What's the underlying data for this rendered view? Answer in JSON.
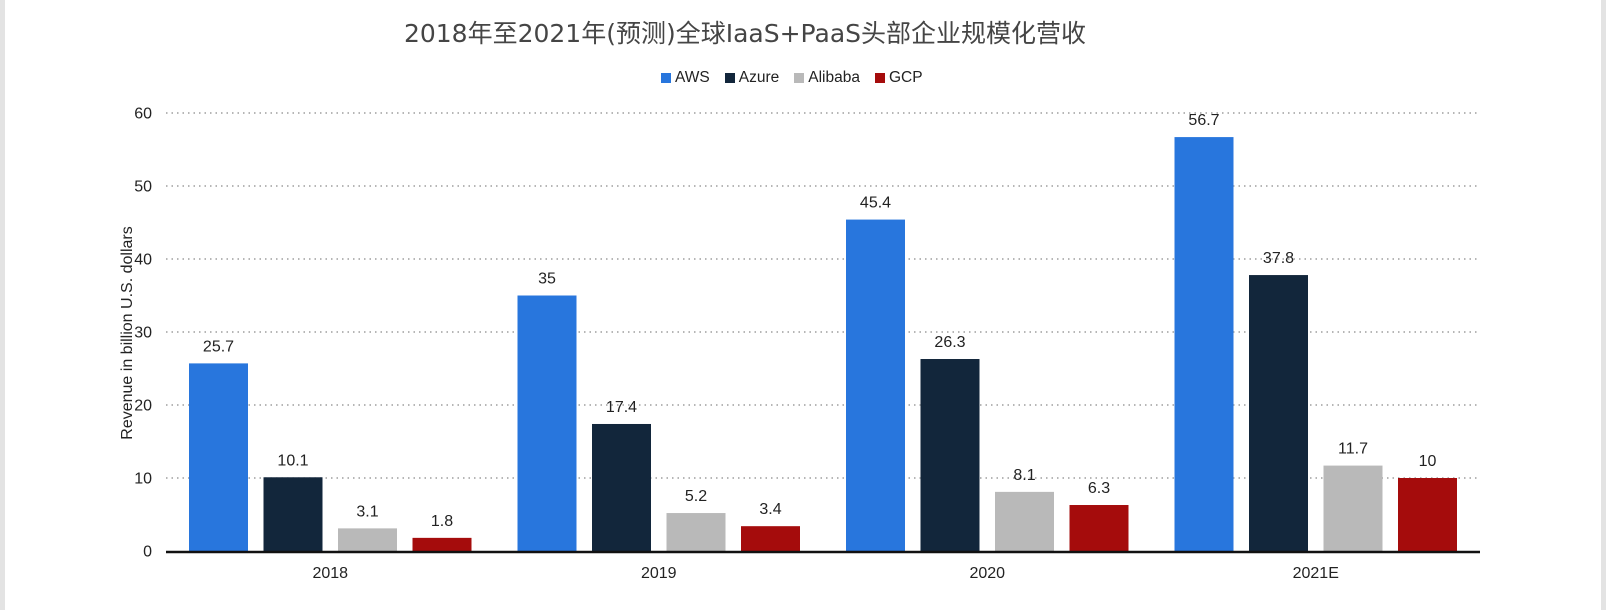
{
  "chart_data": {
    "type": "bar",
    "title": "2018年至2021年(预测)全球IaaS+PaaS头部企业规模化营收",
    "ylabel": "Revenue in billion U.S. dollars",
    "xlabel": "",
    "categories": [
      "2018",
      "2019",
      "2020",
      "2021E"
    ],
    "ylim": [
      0,
      60
    ],
    "yticks": [
      "0",
      "10",
      "20",
      "30",
      "40",
      "50",
      "60"
    ],
    "grid": "dotted horizontal",
    "legend_position": "top-center",
    "series": [
      {
        "name": "AWS",
        "color": "#2876dd",
        "values": [
          25.7,
          35,
          45.4,
          56.7
        ],
        "labels": [
          "25.7",
          "35",
          "45.4",
          "56.7"
        ]
      },
      {
        "name": "Azure",
        "color": "#12263b",
        "values": [
          10.1,
          17.4,
          26.3,
          37.8
        ],
        "labels": [
          "10.1",
          "17.4",
          "26.3",
          "37.8"
        ]
      },
      {
        "name": "Alibaba",
        "color": "#b9b9b9",
        "values": [
          3.1,
          5.2,
          8.1,
          11.7
        ],
        "labels": [
          "3.1",
          "5.2",
          "8.1",
          "11.7"
        ]
      },
      {
        "name": "GCP",
        "color": "#a50c0c",
        "values": [
          1.8,
          3.4,
          6.3,
          10
        ],
        "labels": [
          "1.8",
          "3.4",
          "6.3",
          "10"
        ]
      }
    ]
  }
}
